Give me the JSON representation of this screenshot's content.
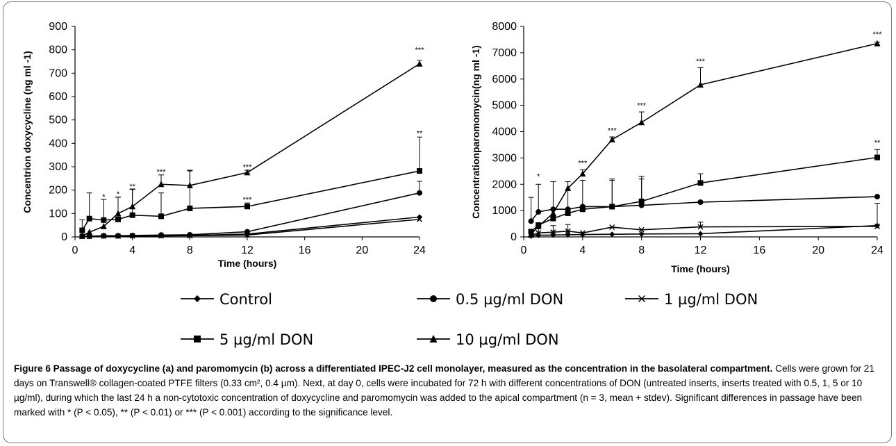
{
  "chart_data": [
    {
      "type": "line",
      "ylabel": "Concentrion doxycycline  (ng ml -1)",
      "xlabel": "Time (hours)",
      "xlim": [
        0,
        24
      ],
      "ylim": [
        0,
        900
      ],
      "xticks": [
        0,
        4,
        8,
        12,
        16,
        20,
        24
      ],
      "yticks": [
        0,
        100,
        200,
        300,
        400,
        500,
        600,
        700,
        800,
        900
      ],
      "x": [
        0.5,
        1,
        2,
        3,
        4,
        6,
        8,
        12,
        24
      ],
      "series": [
        {
          "name": "Control",
          "marker": "diamond",
          "values": [
            2,
            2,
            3,
            3,
            4,
            5,
            6,
            12,
            85
          ],
          "errors": [
            0,
            0,
            0,
            0,
            0,
            0,
            0,
            0,
            0
          ]
        },
        {
          "name": "0.5 µg/ml DON",
          "marker": "circle",
          "values": [
            3,
            3,
            5,
            5,
            6,
            8,
            9,
            22,
            188
          ],
          "errors": [
            0,
            0,
            0,
            0,
            0,
            0,
            0,
            0,
            50
          ]
        },
        {
          "name": "1 µg/ml DON",
          "marker": "x",
          "values": [
            2,
            2,
            3,
            3,
            4,
            4,
            5,
            8,
            75
          ],
          "errors": [
            0,
            0,
            0,
            0,
            0,
            0,
            0,
            0,
            0
          ]
        },
        {
          "name": "5 µg/ml DON",
          "marker": "square",
          "values": [
            28,
            78,
            72,
            75,
            93,
            88,
            122,
            130,
            282
          ],
          "errors": [
            45,
            110,
            88,
            95,
            110,
            100,
            160,
            15,
            145
          ]
        },
        {
          "name": "10 µg/ml DON",
          "marker": "triangle",
          "values": [
            4,
            20,
            45,
            100,
            130,
            225,
            220,
            275,
            740
          ],
          "errors": [
            0,
            0,
            0,
            70,
            75,
            40,
            65,
            10,
            15
          ]
        }
      ],
      "annotations": [
        {
          "x": 2,
          "y": 160,
          "text": "*"
        },
        {
          "x": 3,
          "y": 172,
          "text": "*"
        },
        {
          "x": 4,
          "y": 205,
          "text": "**"
        },
        {
          "x": 6,
          "y": 268,
          "text": "***"
        },
        {
          "x": 12,
          "y": 288,
          "text": "***"
        },
        {
          "x": 12,
          "y": 148,
          "text": "***"
        },
        {
          "x": 24,
          "y": 788,
          "text": "***"
        },
        {
          "x": 24,
          "y": 432,
          "text": "**"
        }
      ]
    },
    {
      "type": "line",
      "ylabel": "Concentrationparomomycin(ng ml -1)",
      "xlabel": "Time (hours)",
      "xlim": [
        0,
        24
      ],
      "ylim": [
        0,
        8000
      ],
      "xticks": [
        0,
        4,
        8,
        12,
        16,
        20,
        24
      ],
      "yticks": [
        0,
        1000,
        2000,
        3000,
        4000,
        5000,
        6000,
        7000,
        8000
      ],
      "x": [
        0.5,
        1,
        2,
        3,
        4,
        6,
        8,
        12,
        24
      ],
      "series": [
        {
          "name": "Control",
          "marker": "diamond",
          "values": [
            30,
            60,
            70,
            80,
            90,
            100,
            110,
            120,
            430
          ],
          "errors": [
            0,
            0,
            0,
            0,
            0,
            0,
            0,
            0,
            0
          ]
        },
        {
          "name": "0.5 µg/ml DON",
          "marker": "circle",
          "values": [
            600,
            950,
            1050,
            1050,
            1150,
            1150,
            1200,
            1320,
            1530
          ],
          "errors": [
            900,
            1050,
            1050,
            1050,
            1000,
            1050,
            1000,
            0,
            0
          ]
        },
        {
          "name": "1 µg/ml DON",
          "marker": "x",
          "values": [
            60,
            150,
            180,
            220,
            150,
            370,
            270,
            380,
            400
          ],
          "errors": [
            200,
            250,
            250,
            250,
            0,
            0,
            0,
            180,
            880
          ]
        },
        {
          "name": "5 µg/ml DON",
          "marker": "square",
          "values": [
            200,
            450,
            700,
            900,
            1050,
            1150,
            1350,
            2050,
            3020
          ],
          "errors": [
            0,
            0,
            0,
            0,
            0,
            1000,
            950,
            350,
            300
          ]
        },
        {
          "name": "10 µg/ml DON",
          "marker": "triangle",
          "values": [
            100,
            400,
            900,
            1850,
            2400,
            3700,
            4350,
            5780,
            7350
          ],
          "errors": [
            0,
            0,
            0,
            0,
            150,
            100,
            400,
            650,
            50
          ]
        }
      ],
      "annotations": [
        {
          "x": 1,
          "y": 2200,
          "text": "*"
        },
        {
          "x": 4,
          "y": 2700,
          "text": "***"
        },
        {
          "x": 6,
          "y": 3950,
          "text": "***"
        },
        {
          "x": 8,
          "y": 4900,
          "text": "***"
        },
        {
          "x": 12,
          "y": 6580,
          "text": "***"
        },
        {
          "x": 24,
          "y": 7600,
          "text": "***"
        },
        {
          "x": 24,
          "y": 3480,
          "text": "**"
        }
      ]
    }
  ],
  "legend": {
    "items": [
      {
        "label": "Control",
        "marker": "diamond"
      },
      {
        "label": "0.5 µg/ml DON",
        "marker": "circle"
      },
      {
        "label": "1 µg/ml DON",
        "marker": "x"
      },
      {
        "label": "5 µg/ml DON",
        "marker": "square"
      },
      {
        "label": "10 µg/ml DON",
        "marker": "triangle"
      }
    ]
  },
  "caption": {
    "title": "Figure 6 Passage of doxycycline (a) and paromomycin (b) across a differentiated IPEC-J2 cell monolayer, measured as the concentration in the basolateral compartment.",
    "body": " Cells were grown for 21 days on Transwell® collagen-coated PTFE filters (0.33 cm², 0.4 µm). Next, at day 0, cells were incubated for 72 h with different concentrations of DON (untreated inserts, inserts treated with 0.5, 1, 5 or 10 µg/ml), during which the last 24 h a non-cytotoxic concentration of doxycycline and paromomycin was added to the apical compartment (n = 3, mean + stdev). Significant differences in passage have been marked with * (P < 0.05), ** (P < 0.01) or *** (P < 0.001) according to the significance level."
  }
}
